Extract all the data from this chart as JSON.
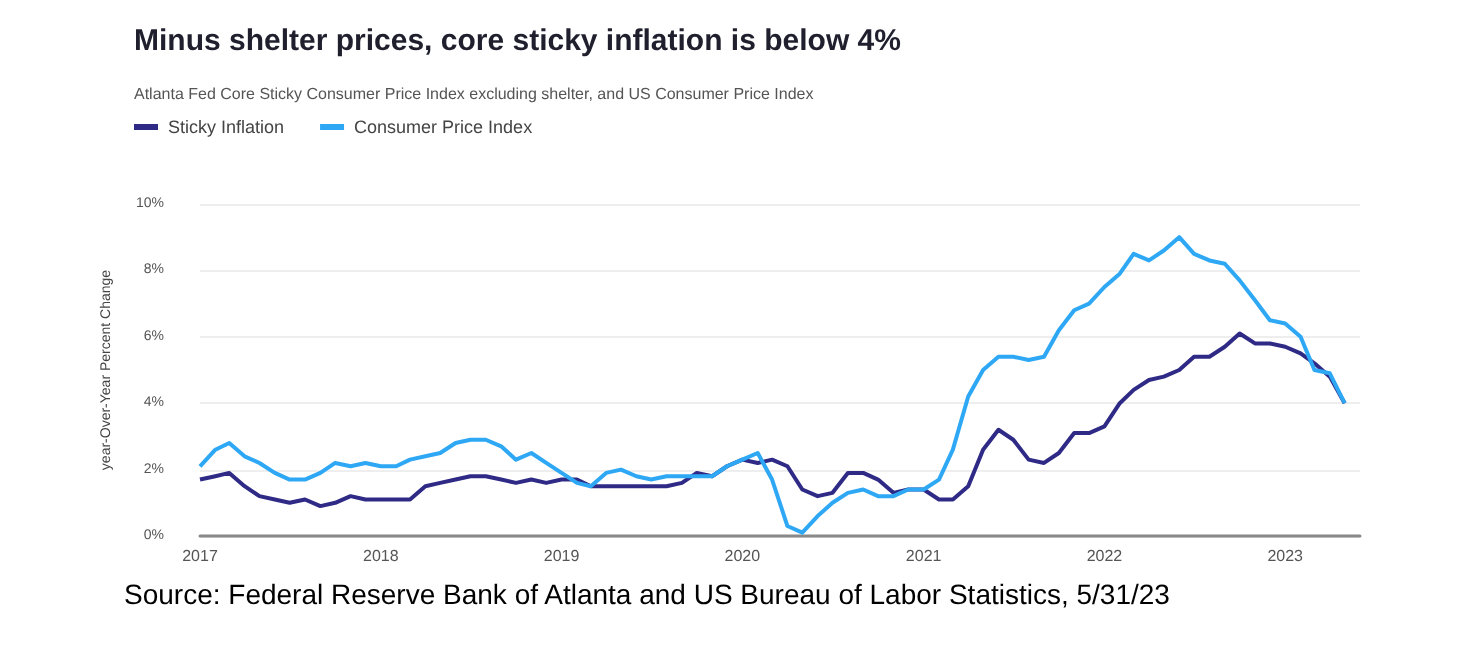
{
  "chart_data": {
    "type": "line",
    "title": "Minus shelter prices, core sticky inflation is below 4%",
    "subtitle": "Atlanta Fed Core Sticky Consumer Price Index excluding shelter, and US Consumer Price Index",
    "ylabel": "year-Over-Year Percent Change",
    "annotations": [
      "Source: Federal Reserve Bank of Atlanta and US Bureau of Labor Statistics, 5/31/23"
    ],
    "x": [
      "2017-01",
      "2017-02",
      "2017-03",
      "2017-04",
      "2017-05",
      "2017-06",
      "2017-07",
      "2017-08",
      "2017-09",
      "2017-10",
      "2017-11",
      "2017-12",
      "2018-01",
      "2018-02",
      "2018-03",
      "2018-04",
      "2018-05",
      "2018-06",
      "2018-07",
      "2018-08",
      "2018-09",
      "2018-10",
      "2018-11",
      "2018-12",
      "2019-01",
      "2019-02",
      "2019-03",
      "2019-04",
      "2019-05",
      "2019-06",
      "2019-07",
      "2019-08",
      "2019-09",
      "2019-10",
      "2019-11",
      "2019-12",
      "2020-01",
      "2020-02",
      "2020-03",
      "2020-04",
      "2020-05",
      "2020-06",
      "2020-07",
      "2020-08",
      "2020-09",
      "2020-10",
      "2020-11",
      "2020-12",
      "2021-01",
      "2021-02",
      "2021-03",
      "2021-04",
      "2021-05",
      "2021-06",
      "2021-07",
      "2021-08",
      "2021-09",
      "2021-10",
      "2021-11",
      "2021-12",
      "2022-01",
      "2022-02",
      "2022-03",
      "2022-04",
      "2022-05",
      "2022-06",
      "2022-07",
      "2022-08",
      "2022-09",
      "2022-10",
      "2022-11",
      "2022-12",
      "2023-01",
      "2023-02",
      "2023-03",
      "2023-04",
      "2023-05"
    ],
    "series": [
      {
        "name": "Sticky Inflation",
        "color": "#2e2a86",
        "values": [
          1.7,
          1.8,
          1.9,
          1.5,
          1.2,
          1.1,
          1.0,
          1.1,
          0.9,
          1.0,
          1.2,
          1.1,
          1.1,
          1.1,
          1.1,
          1.5,
          1.6,
          1.7,
          1.8,
          1.8,
          1.7,
          1.6,
          1.7,
          1.6,
          1.7,
          1.7,
          1.5,
          1.5,
          1.5,
          1.5,
          1.5,
          1.5,
          1.6,
          1.9,
          1.8,
          2.1,
          2.3,
          2.2,
          2.3,
          2.1,
          1.4,
          1.2,
          1.3,
          1.9,
          1.9,
          1.7,
          1.3,
          1.4,
          1.4,
          1.1,
          1.1,
          1.5,
          2.6,
          3.2,
          2.9,
          2.3,
          2.2,
          2.5,
          3.1,
          3.1,
          3.3,
          4.0,
          4.4,
          4.7,
          4.8,
          5.0,
          5.4,
          5.4,
          5.7,
          6.1,
          5.8,
          5.8,
          5.7,
          5.5,
          5.2,
          4.8,
          4.0
        ]
      },
      {
        "name": "Consumer Price Index",
        "color": "#2ea8f5",
        "values": [
          2.1,
          2.6,
          2.8,
          2.4,
          2.2,
          1.9,
          1.7,
          1.7,
          1.9,
          2.2,
          2.1,
          2.2,
          2.1,
          2.1,
          2.3,
          2.4,
          2.5,
          2.8,
          2.9,
          2.9,
          2.7,
          2.3,
          2.5,
          2.2,
          1.9,
          1.6,
          1.5,
          1.9,
          2.0,
          1.8,
          1.7,
          1.8,
          1.8,
          1.8,
          1.8,
          2.1,
          2.3,
          2.5,
          1.7,
          0.3,
          0.1,
          0.6,
          1.0,
          1.3,
          1.4,
          1.2,
          1.2,
          1.4,
          1.4,
          1.7,
          2.6,
          4.2,
          5.0,
          5.4,
          5.4,
          5.3,
          5.4,
          6.2,
          6.8,
          7.0,
          7.5,
          7.9,
          8.5,
          8.3,
          8.6,
          9.0,
          8.5,
          8.3,
          8.2,
          7.7,
          7.1,
          6.5,
          6.4,
          6.0,
          5.0,
          4.9,
          4.0
        ]
      }
    ],
    "xlim": [
      "2017-01",
      "2023-06"
    ],
    "xticks": [
      "2017",
      "2018",
      "2019",
      "2020",
      "2021",
      "2022",
      "2023"
    ],
    "ylim": [
      0,
      10
    ],
    "yticks": [
      {
        "value": 0,
        "label": "0%"
      },
      {
        "value": 2,
        "label": "2%"
      },
      {
        "value": 4,
        "label": "4%"
      },
      {
        "value": 6,
        "label": "6%"
      },
      {
        "value": 8,
        "label": "8%"
      },
      {
        "value": 10,
        "label": "10%"
      }
    ],
    "grid": "y",
    "legend": "top left",
    "marker": "none",
    "line_style": "solid"
  }
}
